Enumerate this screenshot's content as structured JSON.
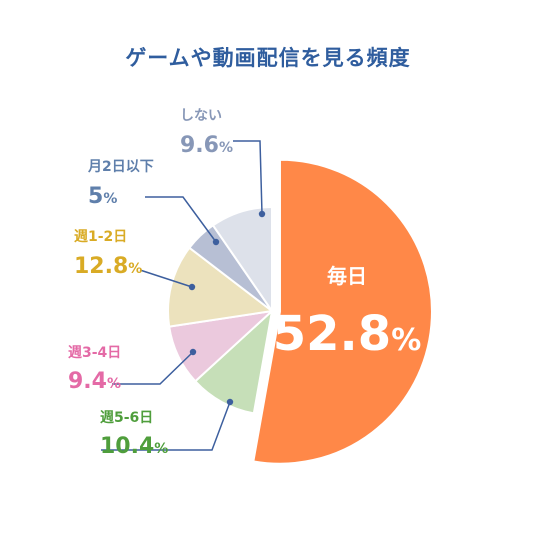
{
  "title": "ゲームや動画配信を見る頻度",
  "chart_data": {
    "type": "pie",
    "title": "ゲームや動画配信を見る頻度",
    "slices": [
      {
        "label": "毎日",
        "value": 52.8,
        "color": "#ff8848"
      },
      {
        "label": "週5-6日",
        "value": 10.4,
        "color": "#c6dfb8"
      },
      {
        "label": "週3-4日",
        "value": 9.4,
        "color": "#ebc9dd"
      },
      {
        "label": "週1-2日",
        "value": 12.8,
        "color": "#ece2bd"
      },
      {
        "label": "月2日以下",
        "value": 5.0,
        "color": "#b7bfd4"
      },
      {
        "label": "しない",
        "value": 9.6,
        "color": "#dde1ea"
      }
    ],
    "label_colors": [
      "#ffffff",
      "#4f9e3c",
      "#e46aa6",
      "#d9ab25",
      "#5f7fab",
      "#8797b7"
    ],
    "leader_color": "#3d5f9e",
    "unit": "%"
  }
}
